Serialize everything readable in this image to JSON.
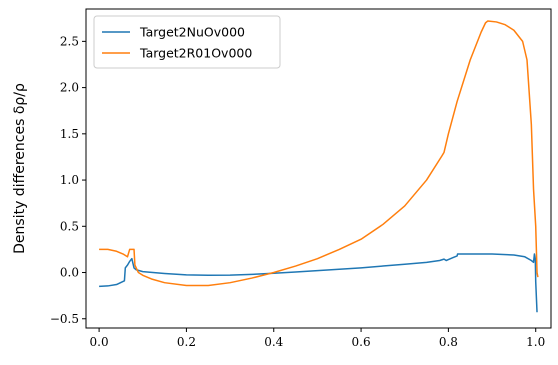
{
  "chart_data": {
    "type": "line",
    "title": "",
    "xlabel": "",
    "ylabel": "Density differences δρ/ρ",
    "xlim": [
      -0.03,
      1.035
    ],
    "ylim": [
      -0.6,
      2.85
    ],
    "xticks": [
      "0.0",
      "0.2",
      "0.4",
      "0.6",
      "0.8",
      "1.0"
    ],
    "yticks": [
      "−0.5",
      "0.0",
      "0.5",
      "1.0",
      "1.5",
      "2.0",
      "2.5"
    ],
    "xtick_values": [
      0.0,
      0.2,
      0.4,
      0.6,
      0.8,
      1.0
    ],
    "ytick_values": [
      -0.5,
      0.0,
      0.5,
      1.0,
      1.5,
      2.0,
      2.5
    ],
    "grid": false,
    "legend_position": "top-left",
    "series": [
      {
        "name": "Target2NuOv000",
        "color": "#1f77b4",
        "points": [
          [
            0.0,
            -0.15
          ],
          [
            0.02,
            -0.145
          ],
          [
            0.04,
            -0.13
          ],
          [
            0.058,
            -0.09
          ],
          [
            0.06,
            0.05
          ],
          [
            0.065,
            0.08
          ],
          [
            0.07,
            0.12
          ],
          [
            0.075,
            0.15
          ],
          [
            0.08,
            0.05
          ],
          [
            0.085,
            0.03
          ],
          [
            0.1,
            0.01
          ],
          [
            0.15,
            -0.01
          ],
          [
            0.2,
            -0.025
          ],
          [
            0.25,
            -0.03
          ],
          [
            0.3,
            -0.028
          ],
          [
            0.35,
            -0.02
          ],
          [
            0.4,
            -0.008
          ],
          [
            0.45,
            0.005
          ],
          [
            0.5,
            0.02
          ],
          [
            0.55,
            0.035
          ],
          [
            0.6,
            0.05
          ],
          [
            0.65,
            0.07
          ],
          [
            0.7,
            0.09
          ],
          [
            0.75,
            0.11
          ],
          [
            0.78,
            0.13
          ],
          [
            0.79,
            0.145
          ],
          [
            0.795,
            0.13
          ],
          [
            0.8,
            0.14
          ],
          [
            0.81,
            0.16
          ],
          [
            0.82,
            0.18
          ],
          [
            0.821,
            0.2
          ],
          [
            0.85,
            0.2
          ],
          [
            0.9,
            0.2
          ],
          [
            0.95,
            0.19
          ],
          [
            0.975,
            0.17
          ],
          [
            0.99,
            0.13
          ],
          [
            0.995,
            0.11
          ],
          [
            0.997,
            0.2
          ],
          [
            0.999,
            0.15
          ],
          [
            1.0,
            -0.1
          ],
          [
            1.003,
            -0.43
          ]
        ]
      },
      {
        "name": "Target2R01Ov000",
        "color": "#ff7f0e",
        "points": [
          [
            0.0,
            0.25
          ],
          [
            0.02,
            0.25
          ],
          [
            0.04,
            0.23
          ],
          [
            0.055,
            0.2
          ],
          [
            0.065,
            0.17
          ],
          [
            0.07,
            0.25
          ],
          [
            0.075,
            0.25
          ],
          [
            0.08,
            0.25
          ],
          [
            0.082,
            0.08
          ],
          [
            0.09,
            0.0
          ],
          [
            0.1,
            -0.03
          ],
          [
            0.12,
            -0.07
          ],
          [
            0.15,
            -0.11
          ],
          [
            0.2,
            -0.14
          ],
          [
            0.25,
            -0.14
          ],
          [
            0.3,
            -0.11
          ],
          [
            0.35,
            -0.06
          ],
          [
            0.4,
            0.0
          ],
          [
            0.45,
            0.07
          ],
          [
            0.5,
            0.15
          ],
          [
            0.55,
            0.25
          ],
          [
            0.6,
            0.36
          ],
          [
            0.65,
            0.52
          ],
          [
            0.7,
            0.72
          ],
          [
            0.75,
            1.0
          ],
          [
            0.785,
            1.26
          ],
          [
            0.79,
            1.3
          ],
          [
            0.8,
            1.5
          ],
          [
            0.82,
            1.85
          ],
          [
            0.85,
            2.3
          ],
          [
            0.875,
            2.6
          ],
          [
            0.885,
            2.7
          ],
          [
            0.89,
            2.72
          ],
          [
            0.91,
            2.71
          ],
          [
            0.93,
            2.68
          ],
          [
            0.95,
            2.62
          ],
          [
            0.97,
            2.5
          ],
          [
            0.98,
            2.3
          ],
          [
            0.99,
            1.6
          ],
          [
            0.995,
            0.9
          ],
          [
            1.0,
            0.5
          ],
          [
            1.003,
            0.0
          ],
          [
            1.005,
            -0.05
          ]
        ]
      }
    ]
  }
}
